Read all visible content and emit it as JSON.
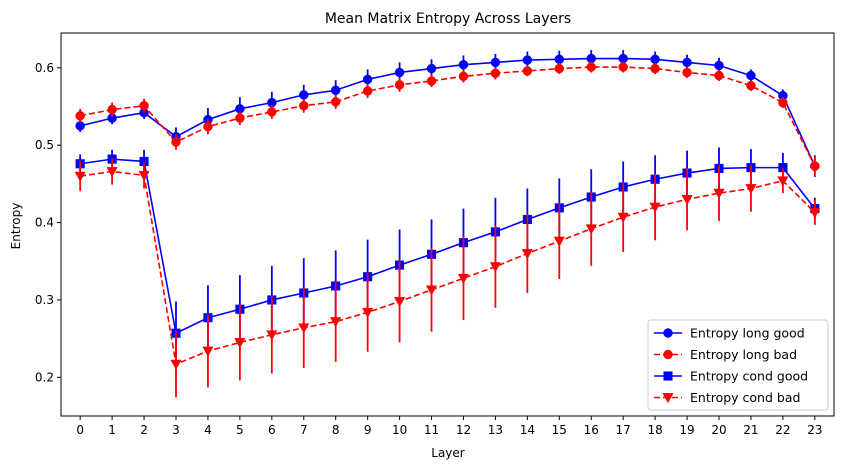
{
  "chart_data": {
    "type": "line",
    "title": "Mean Matrix Entropy Across Layers",
    "xlabel": "Layer",
    "ylabel": "Entropy",
    "x": [
      0,
      1,
      2,
      3,
      4,
      5,
      6,
      7,
      8,
      9,
      10,
      11,
      12,
      13,
      14,
      15,
      16,
      17,
      18,
      19,
      20,
      21,
      22,
      23
    ],
    "xlim": [
      -0.6,
      23.6
    ],
    "ylim": [
      0.15,
      0.645
    ],
    "yticks": [
      0.2,
      0.3,
      0.4,
      0.5,
      0.6
    ],
    "ytick_labels": [
      "0.2",
      "0.3",
      "0.4",
      "0.5",
      "0.6"
    ],
    "grid": false,
    "legend_position": "lower-right",
    "series": [
      {
        "name": "Entropy long good",
        "color": "#0000ff",
        "linestyle": "solid",
        "marker": "circle",
        "values": [
          0.525,
          0.535,
          0.542,
          0.511,
          0.533,
          0.547,
          0.555,
          0.565,
          0.571,
          0.585,
          0.594,
          0.599,
          0.604,
          0.607,
          0.61,
          0.611,
          0.612,
          0.612,
          0.611,
          0.607,
          0.603,
          0.59,
          0.564,
          0.473
        ],
        "errors": [
          0.008,
          0.008,
          0.008,
          0.012,
          0.015,
          0.015,
          0.014,
          0.013,
          0.013,
          0.013,
          0.013,
          0.012,
          0.012,
          0.011,
          0.011,
          0.011,
          0.011,
          0.011,
          0.01,
          0.01,
          0.01,
          0.008,
          0.008,
          0.014
        ]
      },
      {
        "name": "Entropy long bad",
        "color": "#ff0000",
        "linestyle": "dashed",
        "marker": "circle",
        "values": [
          0.538,
          0.546,
          0.551,
          0.504,
          0.524,
          0.535,
          0.543,
          0.551,
          0.556,
          0.57,
          0.578,
          0.583,
          0.589,
          0.593,
          0.596,
          0.599,
          0.601,
          0.601,
          0.599,
          0.594,
          0.59,
          0.577,
          0.555,
          0.473
        ],
        "errors": [
          0.009,
          0.009,
          0.009,
          0.01,
          0.01,
          0.009,
          0.009,
          0.009,
          0.009,
          0.009,
          0.009,
          0.008,
          0.008,
          0.008,
          0.007,
          0.007,
          0.007,
          0.007,
          0.007,
          0.007,
          0.007,
          0.007,
          0.007,
          0.013
        ]
      },
      {
        "name": "Entropy cond good",
        "color": "#0000ff",
        "linestyle": "solid",
        "marker": "square",
        "values": [
          0.476,
          0.482,
          0.479,
          0.257,
          0.277,
          0.288,
          0.3,
          0.309,
          0.318,
          0.33,
          0.345,
          0.359,
          0.374,
          0.388,
          0.404,
          0.419,
          0.433,
          0.446,
          0.456,
          0.464,
          0.47,
          0.471,
          0.471,
          0.418
        ],
        "errors": [
          0.012,
          0.012,
          0.015,
          0.041,
          0.042,
          0.044,
          0.044,
          0.045,
          0.046,
          0.048,
          0.046,
          0.045,
          0.044,
          0.044,
          0.04,
          0.038,
          0.036,
          0.033,
          0.031,
          0.029,
          0.027,
          0.024,
          0.019,
          0.014
        ]
      },
      {
        "name": "Entropy cond bad",
        "color": "#ff0000",
        "linestyle": "dashed",
        "marker": "triangle-down",
        "values": [
          0.46,
          0.466,
          0.461,
          0.217,
          0.234,
          0.245,
          0.255,
          0.264,
          0.272,
          0.284,
          0.298,
          0.313,
          0.328,
          0.343,
          0.36,
          0.376,
          0.392,
          0.407,
          0.42,
          0.43,
          0.438,
          0.444,
          0.454,
          0.413
        ],
        "errors": [
          0.019,
          0.017,
          0.017,
          0.043,
          0.047,
          0.049,
          0.05,
          0.052,
          0.052,
          0.051,
          0.053,
          0.054,
          0.054,
          0.053,
          0.051,
          0.049,
          0.048,
          0.045,
          0.043,
          0.04,
          0.036,
          0.03,
          0.016,
          0.016
        ]
      }
    ]
  }
}
